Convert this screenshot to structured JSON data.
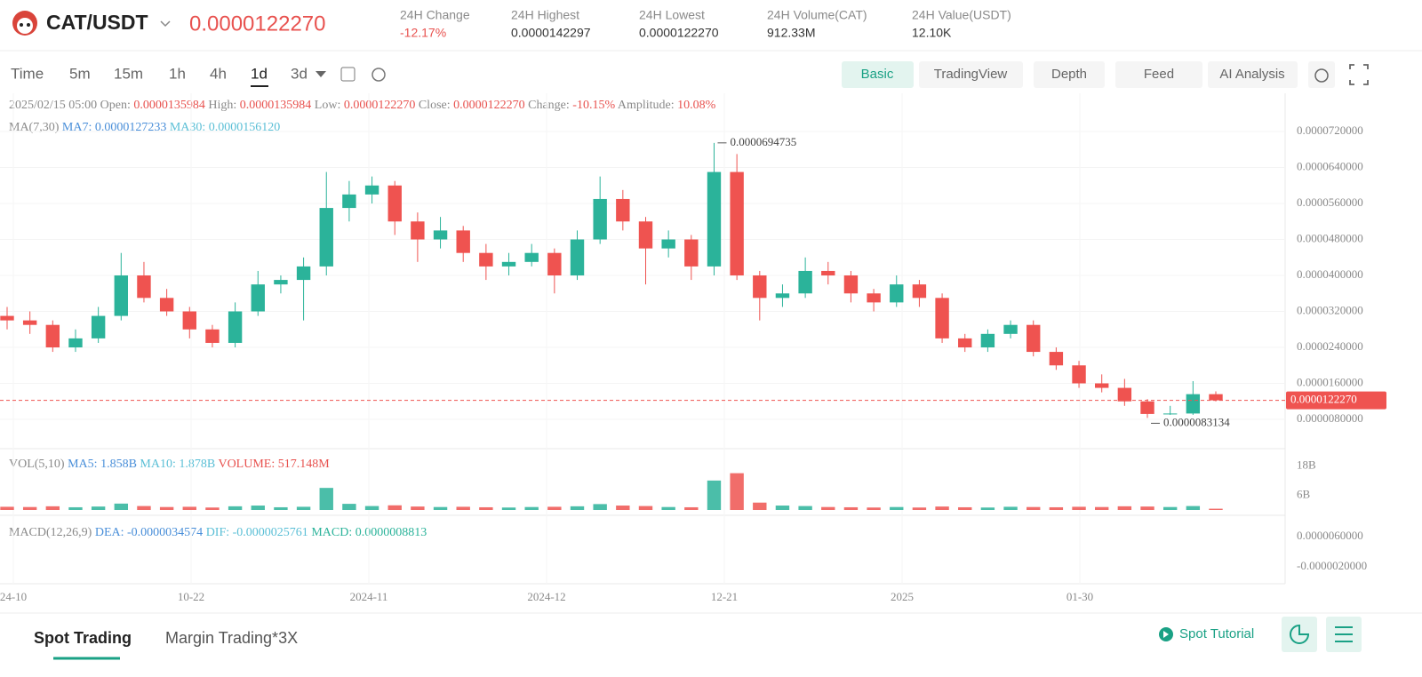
{
  "header": {
    "pair": "CAT/USDT",
    "price": "0.0000122270",
    "stats": [
      {
        "label": "24H Change",
        "value": "-12.17%"
      },
      {
        "label": "24H Highest",
        "value": "0.0000142297"
      },
      {
        "label": "24H Lowest",
        "value": "0.0000122270"
      },
      {
        "label": "24H Volume(CAT)",
        "value": "912.33M"
      },
      {
        "label": "24H Value(USDT)",
        "value": "12.10K"
      }
    ]
  },
  "toolbar": {
    "intervals": [
      "Time",
      "5m",
      "15m",
      "1h",
      "4h",
      "1d",
      "3d"
    ],
    "views": [
      "Basic",
      "TradingView",
      "Depth",
      "Feed",
      "AI Analysis"
    ]
  },
  "legend": {
    "date": "2025/02/15 05:00",
    "items": [
      {
        "label": "Open:",
        "value": "0.0000135984"
      },
      {
        "label": "High:",
        "value": "0.0000135984"
      },
      {
        "label": "Low:",
        "value": "0.0000122270"
      },
      {
        "label": "Close:",
        "value": "0.0000122270"
      },
      {
        "label": "Change:",
        "value": "-10.15%"
      },
      {
        "label": "Amplitude:",
        "value": "10.08%"
      }
    ]
  },
  "ma_legend": {
    "title": "MA(7,30)",
    "items": [
      {
        "label": "MA7:",
        "value": "0.0000127233"
      },
      {
        "label": "MA30:",
        "value": "0.0000156120"
      }
    ]
  },
  "chart_data": {
    "type": "candlestick",
    "up_color": "#2bb39a",
    "down_color": "#ef5350",
    "candles": [
      [
        3.1e-05,
        3.3e-05,
        2.8e-05,
        3e-05
      ],
      [
        3e-05,
        3.2e-05,
        2.7e-05,
        2.9e-05
      ],
      [
        2.9e-05,
        3e-05,
        2.3e-05,
        2.4e-05
      ],
      [
        2.4e-05,
        2.8e-05,
        2.3e-05,
        2.6e-05
      ],
      [
        2.6e-05,
        3.3e-05,
        2.5e-05,
        3.1e-05
      ],
      [
        3.1e-05,
        4.5e-05,
        3e-05,
        4e-05
      ],
      [
        4e-05,
        4.3e-05,
        3.4e-05,
        3.5e-05
      ],
      [
        3.5e-05,
        3.7e-05,
        3.1e-05,
        3.2e-05
      ],
      [
        3.2e-05,
        3.3e-05,
        2.6e-05,
        2.8e-05
      ],
      [
        2.8e-05,
        2.9e-05,
        2.4e-05,
        2.5e-05
      ],
      [
        2.5e-05,
        3.4e-05,
        2.4e-05,
        3.2e-05
      ],
      [
        3.2e-05,
        4.1e-05,
        3.1e-05,
        3.8e-05
      ],
      [
        3.8e-05,
        4e-05,
        3.6e-05,
        3.9e-05
      ],
      [
        3.9e-05,
        4.4e-05,
        3e-05,
        4.2e-05
      ],
      [
        4.2e-05,
        6.3e-05,
        4e-05,
        5.5e-05
      ],
      [
        5.5e-05,
        6.1e-05,
        5.2e-05,
        5.8e-05
      ],
      [
        5.8e-05,
        6.2e-05,
        5.6e-05,
        6e-05
      ],
      [
        6e-05,
        6.1e-05,
        4.9e-05,
        5.2e-05
      ],
      [
        5.2e-05,
        5.4e-05,
        4.3e-05,
        4.8e-05
      ],
      [
        4.8e-05,
        5.3e-05,
        4.6e-05,
        5e-05
      ],
      [
        5e-05,
        5.1e-05,
        4.3e-05,
        4.5e-05
      ],
      [
        4.5e-05,
        4.7e-05,
        3.9e-05,
        4.2e-05
      ],
      [
        4.2e-05,
        4.5e-05,
        4e-05,
        4.3e-05
      ],
      [
        4.3e-05,
        4.7e-05,
        4.2e-05,
        4.5e-05
      ],
      [
        4.5e-05,
        4.6e-05,
        3.6e-05,
        4e-05
      ],
      [
        4e-05,
        5e-05,
        3.9e-05,
        4.8e-05
      ],
      [
        4.8e-05,
        6.2e-05,
        4.7e-05,
        5.7e-05
      ],
      [
        5.7e-05,
        5.9e-05,
        5e-05,
        5.2e-05
      ],
      [
        5.2e-05,
        5.3e-05,
        3.8e-05,
        4.6e-05
      ],
      [
        4.6e-05,
        5e-05,
        4.4e-05,
        4.8e-05
      ],
      [
        4.8e-05,
        4.9e-05,
        3.9e-05,
        4.2e-05
      ],
      [
        4.2e-05,
        6.94735e-05,
        4e-05,
        6.3e-05
      ],
      [
        6.3e-05,
        6.7e-05,
        3.9e-05,
        4e-05
      ],
      [
        4e-05,
        4.1e-05,
        3e-05,
        3.5e-05
      ],
      [
        3.5e-05,
        3.8e-05,
        3.3e-05,
        3.6e-05
      ],
      [
        3.6e-05,
        4.4e-05,
        3.5e-05,
        4.1e-05
      ],
      [
        4.1e-05,
        4.3e-05,
        3.8e-05,
        4e-05
      ],
      [
        4e-05,
        4.1e-05,
        3.4e-05,
        3.6e-05
      ],
      [
        3.6e-05,
        3.7e-05,
        3.2e-05,
        3.4e-05
      ],
      [
        3.4e-05,
        4e-05,
        3.3e-05,
        3.8e-05
      ],
      [
        3.8e-05,
        3.9e-05,
        3.3e-05,
        3.5e-05
      ],
      [
        3.5e-05,
        3.6e-05,
        2.5e-05,
        2.6e-05
      ],
      [
        2.6e-05,
        2.7e-05,
        2.3e-05,
        2.4e-05
      ],
      [
        2.4e-05,
        2.8e-05,
        2.3e-05,
        2.7e-05
      ],
      [
        2.7e-05,
        3e-05,
        2.6e-05,
        2.9e-05
      ],
      [
        2.9e-05,
        3e-05,
        2.2e-05,
        2.3e-05
      ],
      [
        2.3e-05,
        2.4e-05,
        1.9e-05,
        2e-05
      ],
      [
        2e-05,
        2.1e-05,
        1.5e-05,
        1.6e-05
      ],
      [
        1.6e-05,
        1.8e-05,
        1.4e-05,
        1.5e-05
      ],
      [
        1.5e-05,
        1.7e-05,
        1.1e-05,
        1.2e-05
      ],
      [
        1.2e-05,
        1.25e-05,
        8.3134e-06,
        9.2e-06
      ],
      [
        9.2e-06,
        1.1e-05,
        9e-06,
        9.3e-06
      ],
      [
        9.3e-06,
        1.65e-05,
        9e-06,
        1.35984e-05
      ],
      [
        1.35984e-05,
        1.42297e-05,
        1.2e-05,
        1.2227e-05
      ]
    ],
    "ylim": [
      1.48e-06,
      8.05e-05
    ],
    "yticks": [
      {
        "value": 7.2e-05,
        "label": "0.0000720000"
      },
      {
        "value": 6.4e-05,
        "label": "0.0000640000"
      },
      {
        "value": 5.6e-05,
        "label": "0.0000560000"
      },
      {
        "value": 4.8e-05,
        "label": "0.0000480000"
      },
      {
        "value": 4e-05,
        "label": "0.0000400000"
      },
      {
        "value": 3.2e-05,
        "label": "0.0000320000"
      },
      {
        "value": 2.4e-05,
        "label": "0.0000240000"
      },
      {
        "value": 1.6e-05,
        "label": "0.0000160000"
      },
      {
        "value": 8e-06,
        "label": "0.0000080000"
      }
    ],
    "grid": true,
    "last_price": {
      "value": 1.2227e-05,
      "label": "0.0000122270"
    },
    "high_label": {
      "value": 6.94735e-05,
      "label": "0.0000694735"
    },
    "low_label": {
      "value": 8.3134e-06,
      "label": "0.0000083134"
    },
    "x_labels": [
      "24-10",
      "10-22",
      "2024-11",
      "2024-12",
      "12-21",
      "2025",
      "01-30"
    ],
    "volume": {
      "legend": {
        "title": "VOL(5,10)",
        "items": [
          {
            "label": "MA5:",
            "value": "1.858B"
          },
          {
            "label": "MA10:",
            "value": "1.878B"
          },
          {
            "label": "VOLUME:",
            "value": "517.148M"
          }
        ]
      },
      "values": [
        1300000000.0,
        1200000000.0,
        1500000000.0,
        1100000000.0,
        1400000000.0,
        2600000000.0,
        1600000000.0,
        1200000000.0,
        1300000000.0,
        1000000000.0,
        1500000000.0,
        1800000000.0,
        1100000000.0,
        1300000000.0,
        9000000000.0,
        2500000000.0,
        1600000000.0,
        1900000000.0,
        1400000000.0,
        1200000000.0,
        1300000000.0,
        1100000000.0,
        1000000000.0,
        1200000000.0,
        1300000000.0,
        1500000000.0,
        2400000000.0,
        1800000000.0,
        1600000000.0,
        1200000000.0,
        1100000000.0,
        12000000000.0,
        15000000000.0,
        3000000000.0,
        1800000000.0,
        1600000000.0,
        1200000000.0,
        1100000000.0,
        1000000000.0,
        1200000000.0,
        1000000000.0,
        1400000000.0,
        1100000000.0,
        1000000000.0,
        1300000000.0,
        1200000000.0,
        1100000000.0,
        1300000000.0,
        1200000000.0,
        1500000000.0,
        1400000000.0,
        1200000000.0,
        1600000000.0,
        517148000.0
      ],
      "ylim": [
        0,
        25000000000.0
      ],
      "yticks": [
        {
          "value": 18000000000.0,
          "label": "18B"
        },
        {
          "value": 6000000000.0,
          "label": "6B"
        }
      ]
    },
    "macd": {
      "legend": {
        "title": "MACD(12,26,9)",
        "items": [
          {
            "label": "DEA:",
            "value": "-0.0000034574"
          },
          {
            "label": "DIF:",
            "value": "-0.0000025761"
          },
          {
            "label": "MACD:",
            "value": "0.0000008813"
          }
        ]
      },
      "ylim": [
        -6.47e-06,
        1.094e-05
      ],
      "yticks": [
        {
          "value": 6e-06,
          "label": "0.0000060000"
        },
        {
          "value": -2e-06,
          "label": "-0.0000020000"
        }
      ]
    }
  },
  "tabs": [
    "Spot Trading",
    "Margin Trading*3X"
  ],
  "tutorial": "Spot Tutorial"
}
